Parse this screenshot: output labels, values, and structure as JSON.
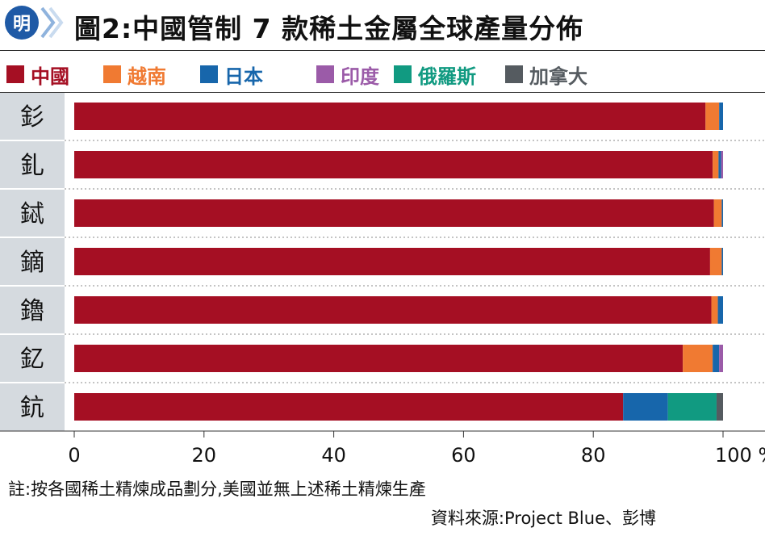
{
  "header": {
    "logo_text": "明",
    "title": "圖2:中國管制 7 款稀土金屬全球產量分佈"
  },
  "chart_data": {
    "type": "bar",
    "orientation": "horizontal",
    "stacked": true,
    "title": "圖2:中國管制 7 款稀土金屬全球產量分佈",
    "categories": [
      "釤",
      "釓",
      "鋱",
      "鏑",
      "鑥",
      "釔",
      "鈧"
    ],
    "series": [
      {
        "name": "中國",
        "color": "#a50f23",
        "values": [
          97.3,
          98.4,
          98.6,
          98.0,
          98.2,
          93.8,
          84.6
        ]
      },
      {
        "name": "越南",
        "color": "#f07a32",
        "values": [
          2.1,
          0.9,
          1.2,
          1.8,
          1.0,
          4.6,
          0.0
        ]
      },
      {
        "name": "日本",
        "color": "#1766ab",
        "values": [
          0.6,
          0.4,
          0.2,
          0.2,
          0.8,
          1.0,
          6.9
        ]
      },
      {
        "name": "印度",
        "color": "#9b5ba8",
        "values": [
          0.0,
          0.3,
          0.0,
          0.0,
          0.0,
          0.6,
          0.0
        ]
      },
      {
        "name": "俄羅斯",
        "color": "#119a81",
        "values": [
          0.0,
          0.0,
          0.0,
          0.0,
          0.0,
          0.0,
          7.5
        ]
      },
      {
        "name": "加拿大",
        "color": "#555b60",
        "values": [
          0.0,
          0.0,
          0.0,
          0.0,
          0.0,
          0.0,
          1.0
        ]
      }
    ],
    "xlim": [
      0,
      100
    ],
    "xticks": [
      0,
      20,
      40,
      60,
      80,
      100
    ],
    "xtick_labels": [
      "0",
      "20",
      "40",
      "60",
      "80",
      "100 %"
    ],
    "legend_position": "top",
    "grid": false
  },
  "notes": {
    "footnote": "註:按各國稀土精煉成品劃分,美國並無上述稀土精煉生產",
    "source": "資料來源:Project Blue、彭博"
  }
}
